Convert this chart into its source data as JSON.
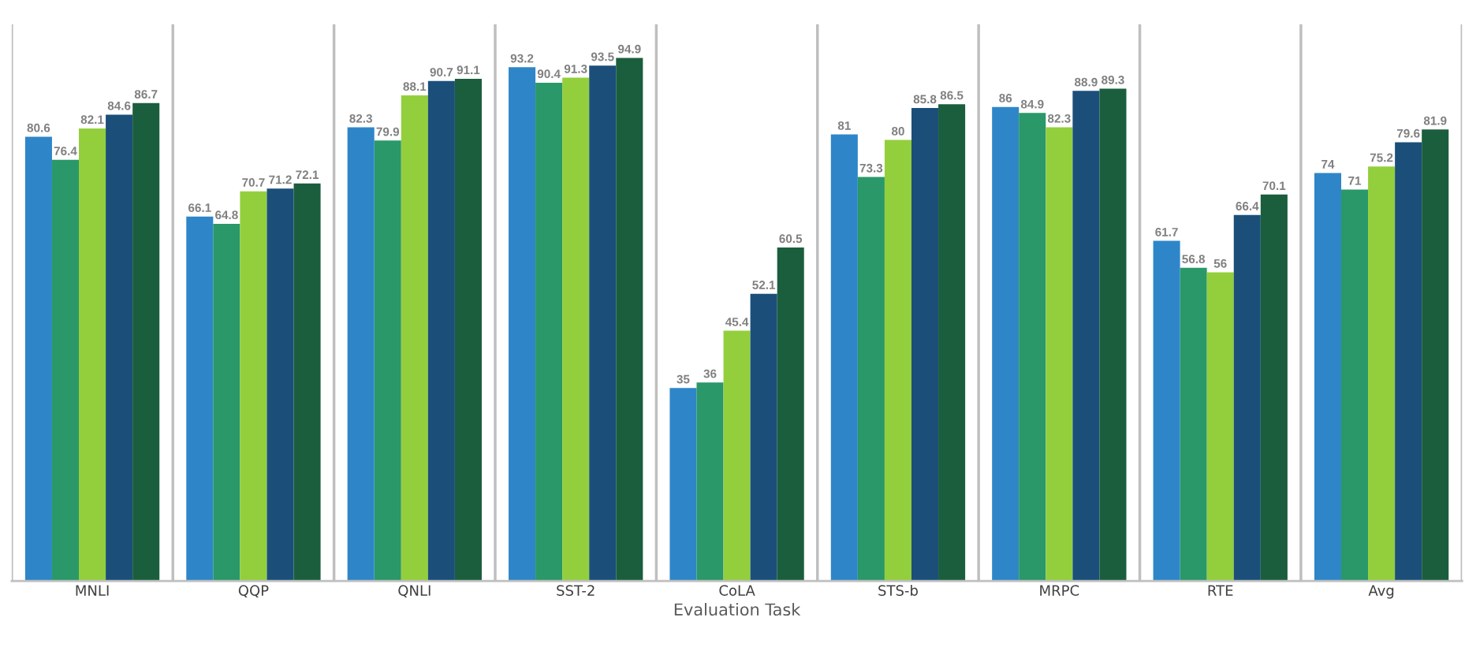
{
  "chart_data": {
    "type": "bar",
    "xlabel": "Evaluation Task",
    "categories": [
      "MNLI",
      "QQP",
      "QNLI",
      "SST-2",
      "CoLA",
      "STS-b",
      "MRPC",
      "RTE",
      "Avg"
    ],
    "series": [
      {
        "color": "#2e86c8",
        "values": [
          80.6,
          66.1,
          82.3,
          93.2,
          35,
          81,
          86,
          61.7,
          74
        ]
      },
      {
        "color": "#2a9868",
        "values": [
          76.4,
          64.8,
          79.9,
          90.4,
          36,
          73.3,
          84.9,
          56.8,
          71
        ]
      },
      {
        "color": "#93cf3c",
        "values": [
          82.1,
          70.7,
          88.1,
          91.3,
          45.4,
          80,
          82.3,
          56,
          75.2
        ]
      },
      {
        "color": "#1b4f7a",
        "values": [
          84.6,
          71.2,
          90.7,
          93.5,
          52.1,
          85.8,
          88.9,
          66.4,
          79.6
        ]
      },
      {
        "color": "#1b5e3d",
        "values": [
          86.7,
          72.1,
          91.1,
          94.9,
          60.5,
          86.5,
          89.3,
          70.1,
          81.9
        ]
      }
    ],
    "ylim": [
      0,
      101
    ],
    "tick_labels": "x",
    "grid": "x",
    "data_labels": true
  }
}
